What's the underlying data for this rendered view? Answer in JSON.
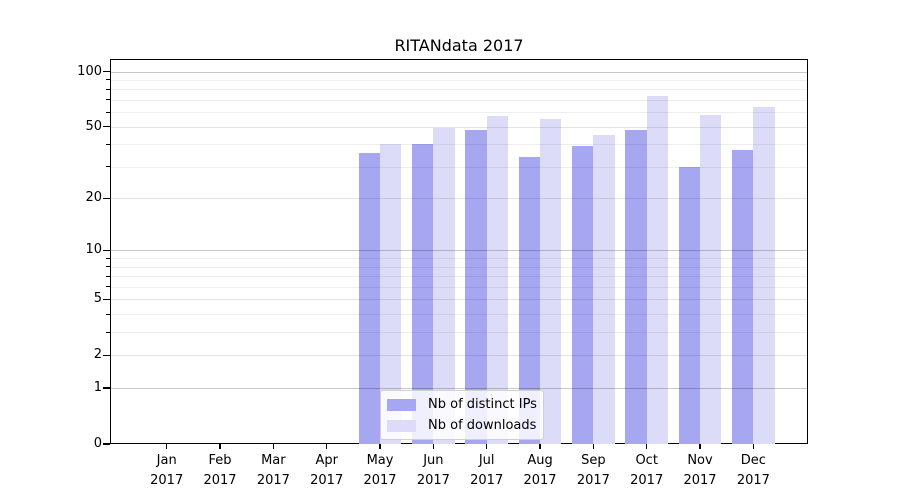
{
  "chart_data": {
    "type": "bar",
    "title": "RITANdata 2017",
    "categories": [
      "Jan 2017",
      "Feb 2017",
      "Mar 2017",
      "Apr 2017",
      "May 2017",
      "Jun 2017",
      "Jul 2017",
      "Aug 2017",
      "Sep 2017",
      "Oct 2017",
      "Nov 2017",
      "Dec 2017"
    ],
    "series": [
      {
        "name": "Nb of distinct IPs",
        "color": "#a6a6f1",
        "values": [
          null,
          null,
          null,
          null,
          36,
          40,
          48,
          34,
          39,
          48,
          30,
          37
        ]
      },
      {
        "name": "Nb of downloads",
        "color": "#dcdcf8",
        "values": [
          null,
          null,
          null,
          null,
          40,
          49,
          57,
          55,
          45,
          74,
          58,
          64
        ]
      }
    ],
    "xlabel": "",
    "ylabel": "",
    "yscale": "log1p",
    "ylim": [
      0,
      117
    ],
    "y_ticks_labeled": [
      0,
      1,
      2,
      5,
      10,
      20,
      50,
      100
    ],
    "y_tick_labels": [
      "0",
      "1",
      "2",
      "5",
      "10",
      "20",
      "50",
      "100"
    ],
    "y_ticks_decade": [
      1,
      10,
      100
    ],
    "y_ticks_mid": [
      2,
      5,
      20,
      50
    ],
    "y_ticks_minor": [
      3,
      4,
      6,
      7,
      8,
      9,
      30,
      40,
      60,
      70,
      80,
      90
    ],
    "grid": "both",
    "legend_position": "lower center"
  },
  "colors": {
    "bar_dark": "#a6a6f1",
    "bar_light": "#dcdcf8",
    "grid_major": "#c9c9c9",
    "grid_minor": "#ededed",
    "spine": "#000000",
    "background": "#ffffff"
  }
}
